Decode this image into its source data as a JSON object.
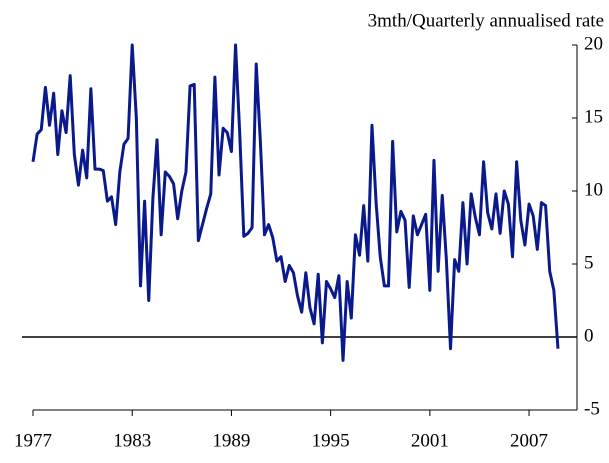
{
  "chart_data": {
    "type": "line",
    "title": "3mth/Quarterly annualised rate",
    "x": [
      1977,
      1977.25,
      1977.5,
      1977.75,
      1978,
      1978.25,
      1978.5,
      1978.75,
      1979,
      1979.25,
      1979.5,
      1979.75,
      1980,
      1980.25,
      1980.5,
      1980.75,
      1981,
      1981.25,
      1981.5,
      1981.75,
      1982,
      1982.25,
      1982.5,
      1982.75,
      1983,
      1983.25,
      1983.5,
      1983.75,
      1984,
      1984.25,
      1984.5,
      1984.75,
      1985,
      1985.25,
      1985.5,
      1985.75,
      1986,
      1986.25,
      1986.5,
      1986.75,
      1987,
      1987.25,
      1987.5,
      1987.75,
      1988,
      1988.25,
      1988.5,
      1988.75,
      1989,
      1989.25,
      1989.5,
      1989.75,
      1990,
      1990.25,
      1990.5,
      1990.75,
      1991,
      1991.25,
      1991.5,
      1991.75,
      1992,
      1992.25,
      1992.5,
      1992.75,
      1993,
      1993.25,
      1993.5,
      1993.75,
      1994,
      1994.25,
      1994.5,
      1994.75,
      1995,
      1995.25,
      1995.5,
      1995.75,
      1996,
      1996.25,
      1996.5,
      1996.75,
      1997,
      1997.25,
      1997.5,
      1997.75,
      1998,
      1998.25,
      1998.5,
      1998.75,
      1999,
      1999.25,
      1999.5,
      1999.75,
      2000,
      2000.25,
      2000.5,
      2000.75,
      2001,
      2001.25,
      2001.5,
      2001.75,
      2002,
      2002.25,
      2002.5,
      2002.75,
      2003,
      2003.25,
      2003.5,
      2003.75,
      2004,
      2004.25,
      2004.5,
      2004.75,
      2005,
      2005.25,
      2005.5,
      2005.75,
      2006,
      2006.25,
      2006.5,
      2006.75,
      2007,
      2007.25,
      2007.5,
      2007.75,
      2008,
      2008.25,
      2008.5,
      2008.75
    ],
    "series": [
      {
        "color": "#0a1a8c",
        "values": [
          12,
          13.9,
          14.2,
          17.1,
          14.5,
          16.7,
          12.5,
          15.5,
          14,
          17.9,
          12.5,
          10.4,
          12.8,
          10.9,
          17,
          11.5,
          11.5,
          11.4,
          9.3,
          9.6,
          7.7,
          11.3,
          13.2,
          13.6,
          20,
          15,
          3.5,
          9.3,
          2.5,
          9.5,
          13.5,
          7,
          11.3,
          11,
          10.5,
          8.1,
          10,
          11.3,
          17.2,
          17.3,
          6.6,
          7.7,
          8.8,
          9.8,
          17.8,
          11.1,
          14.3,
          14,
          12.7,
          20,
          14,
          6.9,
          7.1,
          7.5,
          18.7,
          13.4,
          7,
          7.7,
          6.8,
          5.2,
          5.5,
          3.8,
          4.9,
          4.4,
          2.8,
          1.7,
          4.4,
          2,
          0.9,
          4.3,
          -0.4,
          3.8,
          3.3,
          2.7,
          4.2,
          -1.6,
          3.8,
          1.3,
          7,
          5.6,
          9,
          5.2,
          14.5,
          9.2,
          5.5,
          3.5,
          3.5,
          13.4,
          7.2,
          8.6,
          8,
          3.4,
          8.3,
          7,
          7.7,
          8.4,
          3.2,
          12.1,
          4.5,
          9.7,
          5.3,
          -0.8,
          5.3,
          4.5,
          9.2,
          5,
          9.8,
          8.2,
          7,
          12,
          8.5,
          7.4,
          9.8,
          7.1,
          10,
          9.1,
          5.5,
          12,
          8,
          6.3,
          9.1,
          8.3,
          6,
          9.2,
          9,
          4.5,
          3.2,
          -0.8
        ]
      }
    ],
    "xlim": [
      1977,
      2009.9
    ],
    "xticks": [
      1977,
      1983,
      1989,
      1995,
      2001,
      2007
    ],
    "ylim": [
      -5,
      20
    ],
    "yticks": [
      -5,
      0,
      5,
      10,
      15,
      20
    ]
  }
}
